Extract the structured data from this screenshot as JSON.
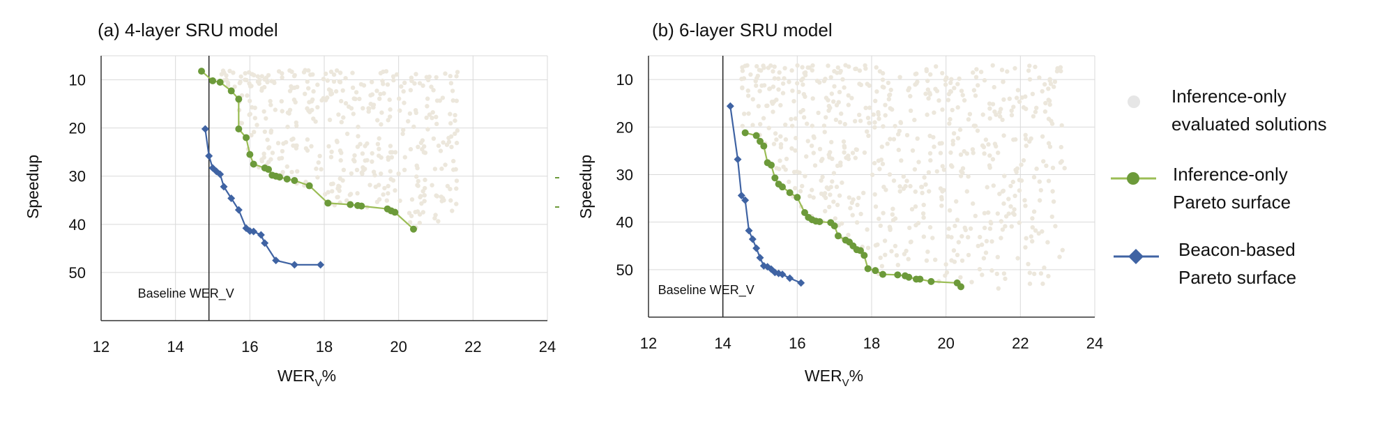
{
  "colors": {
    "inference_points": "#ece7dc",
    "inference_pareto": "#6c9a3a",
    "inference_pareto_line": "#9bbd55",
    "beacon_pareto": "#3f63a3",
    "axis": "#333333",
    "grid": "#d9d9d9"
  },
  "legend": {
    "inference_points": [
      "Inference-only",
      "evaluated solutions"
    ],
    "inference_pareto": [
      "Inference-only",
      "Pareto surface"
    ],
    "beacon_pareto": [
      "Beacon-based",
      "Pareto surface"
    ]
  },
  "chart_data": [
    {
      "type": "scatter",
      "title": "(a) 4-layer SRU model",
      "xlabel": "WER",
      "xlabel_sub": "V",
      "xlabel_suffix": "%",
      "ylabel": "Speedup",
      "xlim": [
        12,
        24
      ],
      "ylim": [
        5,
        60
      ],
      "y_inverted": true,
      "x_ticks": [
        12,
        14,
        16,
        18,
        20,
        22,
        24
      ],
      "y_ticks": [
        10,
        20,
        30,
        40,
        50
      ],
      "grid": true,
      "reference_line": {
        "label": "Baseline WER_V",
        "x": 14.9
      },
      "cloud": {
        "x_range": [
          15.2,
          21.6
        ],
        "y_range": [
          8,
          41
        ],
        "count": 420
      },
      "series": [
        {
          "name": "Inference-only Pareto surface",
          "marker": "circle",
          "points": [
            [
              14.7,
              8.2
            ],
            [
              15.0,
              10.2
            ],
            [
              15.2,
              10.5
            ],
            [
              15.5,
              12.3
            ],
            [
              15.7,
              14.0
            ],
            [
              15.7,
              20.2
            ],
            [
              15.9,
              22.0
            ],
            [
              16.0,
              25.5
            ],
            [
              16.1,
              27.5
            ],
            [
              16.4,
              28.3
            ],
            [
              16.5,
              28.6
            ],
            [
              16.6,
              29.8
            ],
            [
              16.7,
              30.0
            ],
            [
              16.8,
              30.2
            ],
            [
              17.0,
              30.6
            ],
            [
              17.2,
              30.9
            ],
            [
              17.6,
              32.0
            ],
            [
              18.1,
              35.6
            ],
            [
              18.7,
              35.9
            ],
            [
              18.9,
              36.1
            ],
            [
              19.0,
              36.2
            ],
            [
              19.7,
              36.8
            ],
            [
              19.8,
              37.2
            ],
            [
              19.9,
              37.5
            ],
            [
              20.4,
              41.0
            ]
          ]
        },
        {
          "name": "Beacon-based Pareto surface",
          "marker": "diamond",
          "points": [
            [
              14.8,
              20.2
            ],
            [
              14.9,
              25.8
            ],
            [
              15.0,
              28.3
            ],
            [
              15.1,
              29.0
            ],
            [
              15.2,
              29.6
            ],
            [
              15.3,
              32.2
            ],
            [
              15.5,
              34.6
            ],
            [
              15.7,
              37.0
            ],
            [
              15.9,
              40.8
            ],
            [
              16.0,
              41.4
            ],
            [
              16.1,
              41.5
            ],
            [
              16.3,
              42.2
            ],
            [
              16.4,
              43.9
            ],
            [
              16.7,
              47.5
            ],
            [
              17.2,
              48.4
            ],
            [
              17.9,
              48.4
            ]
          ]
        }
      ]
    },
    {
      "type": "scatter",
      "title": "(b) 6-layer SRU model",
      "xlabel": "WER",
      "xlabel_sub": "V",
      "xlabel_suffix": "%",
      "ylabel": "Speedup",
      "xlim": [
        12,
        24
      ],
      "ylim": [
        5,
        60
      ],
      "y_inverted": true,
      "x_ticks": [
        12,
        14,
        16,
        18,
        20,
        22,
        24
      ],
      "y_ticks": [
        10,
        20,
        30,
        40,
        50
      ],
      "grid": true,
      "reference_line": {
        "label": "Baseline WER_V",
        "x": 14.0
      },
      "cloud": {
        "x_range": [
          14.5,
          23.2
        ],
        "y_range": [
          7,
          54
        ],
        "count": 650
      },
      "series": [
        {
          "name": "Inference-only Pareto surface",
          "marker": "circle",
          "points": [
            [
              14.6,
              21.2
            ],
            [
              14.9,
              21.8
            ],
            [
              15.0,
              23.0
            ],
            [
              15.1,
              24.0
            ],
            [
              15.2,
              27.5
            ],
            [
              15.3,
              28.0
            ],
            [
              15.4,
              30.7
            ],
            [
              15.5,
              32.0
            ],
            [
              15.6,
              32.6
            ],
            [
              15.8,
              33.8
            ],
            [
              16.0,
              34.8
            ],
            [
              16.2,
              38.0
            ],
            [
              16.3,
              39.0
            ],
            [
              16.4,
              39.5
            ],
            [
              16.5,
              39.8
            ],
            [
              16.6,
              39.9
            ],
            [
              16.9,
              40.1
            ],
            [
              17.0,
              40.8
            ],
            [
              17.1,
              42.9
            ],
            [
              17.3,
              43.8
            ],
            [
              17.4,
              44.2
            ],
            [
              17.5,
              45.0
            ],
            [
              17.6,
              45.8
            ],
            [
              17.7,
              46.0
            ],
            [
              17.8,
              47.0
            ],
            [
              17.9,
              49.8
            ],
            [
              18.1,
              50.2
            ],
            [
              18.3,
              51.0
            ],
            [
              18.7,
              51.1
            ],
            [
              18.9,
              51.3
            ],
            [
              19.0,
              51.6
            ],
            [
              19.2,
              52.0
            ],
            [
              19.3,
              52.0
            ],
            [
              19.6,
              52.5
            ],
            [
              20.3,
              52.8
            ],
            [
              20.4,
              53.6
            ]
          ]
        },
        {
          "name": "Beacon-based Pareto surface",
          "marker": "diamond",
          "points": [
            [
              14.2,
              15.6
            ],
            [
              14.4,
              26.8
            ],
            [
              14.5,
              34.4
            ],
            [
              14.6,
              35.4
            ],
            [
              14.7,
              41.8
            ],
            [
              14.8,
              43.6
            ],
            [
              14.9,
              45.5
            ],
            [
              15.0,
              47.5
            ],
            [
              15.1,
              49.2
            ],
            [
              15.2,
              49.4
            ],
            [
              15.3,
              49.9
            ],
            [
              15.4,
              50.6
            ],
            [
              15.5,
              50.8
            ],
            [
              15.6,
              51.0
            ],
            [
              15.8,
              51.8
            ],
            [
              16.1,
              52.8
            ]
          ]
        }
      ]
    }
  ]
}
